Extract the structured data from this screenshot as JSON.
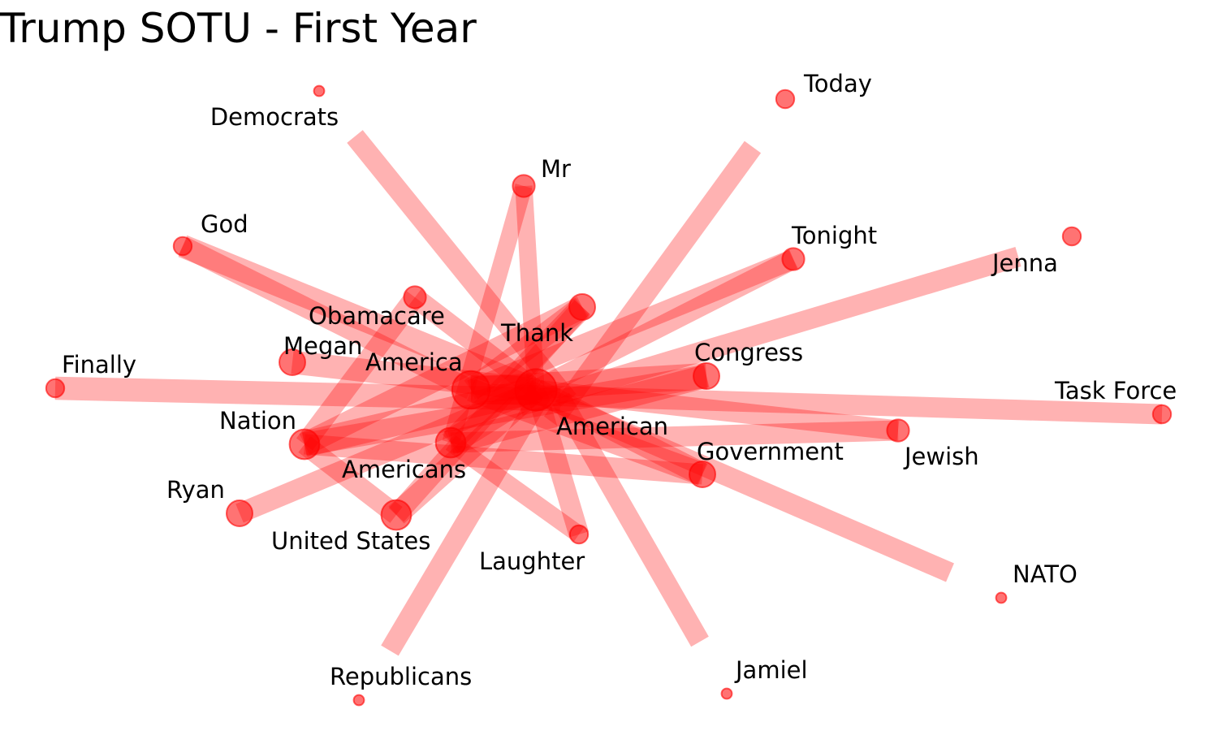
{
  "title": "Trump SOTU - First Year",
  "colors": {
    "edge": "#ff0000",
    "node": "#ff0000",
    "label": "#000000",
    "background": "#ffffff"
  },
  "nodes": [
    {
      "id": "Democrats",
      "label": "Democrats",
      "size": 1
    },
    {
      "id": "Today",
      "label": "Today",
      "size": 3
    },
    {
      "id": "Mr",
      "label": "Mr",
      "size": 4
    },
    {
      "id": "God",
      "label": "God",
      "size": 3
    },
    {
      "id": "Tonight",
      "label": "Tonight",
      "size": 4
    },
    {
      "id": "Jenna",
      "label": "Jenna",
      "size": 3
    },
    {
      "id": "Obamacare",
      "label": "Obamacare",
      "size": 4
    },
    {
      "id": "Thank",
      "label": "Thank",
      "size": 5
    },
    {
      "id": "Megan",
      "label": "Megan",
      "size": 5
    },
    {
      "id": "America",
      "label": "America",
      "size": 8
    },
    {
      "id": "Congress",
      "label": "Congress",
      "size": 5
    },
    {
      "id": "Finally",
      "label": "Finally",
      "size": 3
    },
    {
      "id": "Task Force",
      "label": "Task Force",
      "size": 3
    },
    {
      "id": "Nation",
      "label": "Nation",
      "size": 6
    },
    {
      "id": "American",
      "label": "American",
      "size": 9
    },
    {
      "id": "Jewish",
      "label": "Jewish",
      "size": 4
    },
    {
      "id": "Government",
      "label": "Government",
      "size": 5
    },
    {
      "id": "Americans",
      "label": "Americans",
      "size": 6
    },
    {
      "id": "Ryan",
      "label": "Ryan",
      "size": 5
    },
    {
      "id": "United States",
      "label": "United States",
      "size": 6
    },
    {
      "id": "Laughter",
      "label": "Laughter",
      "size": 3
    },
    {
      "id": "NATO",
      "label": "NATO",
      "size": 1
    },
    {
      "id": "Republicans",
      "label": "Republicans",
      "size": 1
    },
    {
      "id": "Jamiel",
      "label": "Jamiel",
      "size": 1
    }
  ],
  "edges": [
    {
      "source": "Democrats",
      "target": "American",
      "weight": 5
    },
    {
      "source": "Today",
      "target": "American",
      "weight": 5
    },
    {
      "source": "Mr",
      "target": "American",
      "weight": 4
    },
    {
      "source": "Mr",
      "target": "Americans",
      "weight": 4
    },
    {
      "source": "God",
      "target": "American",
      "weight": 6
    },
    {
      "source": "God",
      "target": "America",
      "weight": 5
    },
    {
      "source": "Tonight",
      "target": "American",
      "weight": 5
    },
    {
      "source": "Tonight",
      "target": "America",
      "weight": 5
    },
    {
      "source": "Jenna",
      "target": "American",
      "weight": 5
    },
    {
      "source": "Obamacare",
      "target": "American",
      "weight": 5
    },
    {
      "source": "Obamacare",
      "target": "Nation",
      "weight": 5
    },
    {
      "source": "Thank",
      "target": "America",
      "weight": 6
    },
    {
      "source": "Thank",
      "target": "Americans",
      "weight": 6
    },
    {
      "source": "Thank",
      "target": "United States",
      "weight": 5
    },
    {
      "source": "Thank",
      "target": "Nation",
      "weight": 6
    },
    {
      "source": "Megan",
      "target": "American",
      "weight": 6
    },
    {
      "source": "America",
      "target": "American",
      "weight": 8
    },
    {
      "source": "America",
      "target": "Congress",
      "weight": 7
    },
    {
      "source": "America",
      "target": "Government",
      "weight": 6
    },
    {
      "source": "Congress",
      "target": "Americans",
      "weight": 6
    },
    {
      "source": "Congress",
      "target": "Nation",
      "weight": 6
    },
    {
      "source": "Finally",
      "target": "American",
      "weight": 6
    },
    {
      "source": "Task Force",
      "target": "America",
      "weight": 5
    },
    {
      "source": "Nation",
      "target": "American",
      "weight": 7
    },
    {
      "source": "Americans",
      "target": "American",
      "weight": 7
    },
    {
      "source": "Jewish",
      "target": "American",
      "weight": 5
    },
    {
      "source": "Jewish",
      "target": "Americans",
      "weight": 5
    },
    {
      "source": "Government",
      "target": "Nation",
      "weight": 5
    },
    {
      "source": "Government",
      "target": "American",
      "weight": 6
    },
    {
      "source": "Ryan",
      "target": "American",
      "weight": 5
    },
    {
      "source": "United States",
      "target": "American",
      "weight": 6
    },
    {
      "source": "United States",
      "target": "Nation",
      "weight": 5
    },
    {
      "source": "Laughter",
      "target": "American",
      "weight": 5
    },
    {
      "source": "Laughter",
      "target": "Americans",
      "weight": 4
    },
    {
      "source": "NATO",
      "target": "American",
      "weight": 5
    },
    {
      "source": "Republicans",
      "target": "American",
      "weight": 5
    },
    {
      "source": "Jamiel",
      "target": "America",
      "weight": 5
    }
  ]
}
